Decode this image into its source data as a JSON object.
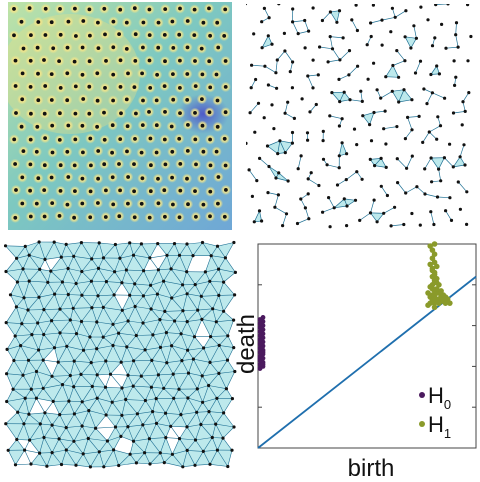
{
  "figure": {
    "panels": [
      {
        "name": "heatmap-panel",
        "kind": "density-field-with-points"
      },
      {
        "name": "sparse-complex-panel",
        "kind": "simplicial-complex",
        "filtration": "low"
      },
      {
        "name": "dense-complex-panel",
        "kind": "simplicial-complex",
        "filtration": "high"
      },
      {
        "name": "persistence-diagram-panel",
        "kind": "persistence-diagram"
      }
    ],
    "colors": {
      "points": "#111111",
      "edges": "#1d6f93",
      "triangles": "#bde9ec",
      "heat_high": "#f3e58a",
      "heat_mid": "#7ec9c0",
      "heat_low": "#4a4fc8"
    }
  },
  "chart_data": {
    "type": "scatter",
    "title": "",
    "xlabel": "birth",
    "ylabel": "death",
    "xlim": [
      0,
      1
    ],
    "ylim": [
      0,
      1
    ],
    "grid": false,
    "legend_position": "bottom-right",
    "diagonal": {
      "from": [
        0,
        0
      ],
      "to": [
        1,
        0.84
      ],
      "color": "#1f6fae"
    },
    "series": [
      {
        "name": "H",
        "subscript": "0",
        "color": "#4b1a5e",
        "x": [
          0,
          0,
          0,
          0,
          0,
          0,
          0,
          0,
          0,
          0,
          0,
          0,
          0,
          0,
          0,
          0,
          0,
          0,
          0,
          0,
          0,
          0,
          0,
          0,
          0,
          0,
          0,
          0,
          0,
          0
        ],
        "y": [
          0.39,
          0.4,
          0.41,
          0.42,
          0.43,
          0.44,
          0.45,
          0.46,
          0.47,
          0.48,
          0.49,
          0.5,
          0.51,
          0.52,
          0.53,
          0.54,
          0.55,
          0.56,
          0.57,
          0.58,
          0.59,
          0.6,
          0.61,
          0.62,
          0.63,
          0.64,
          0.39,
          0.41,
          0.44,
          0.47
        ]
      },
      {
        "name": "H",
        "subscript": "1",
        "color": "#8a9a2a",
        "x": [
          0.78,
          0.79,
          0.8,
          0.81,
          0.8,
          0.82,
          0.83,
          0.84,
          0.79,
          0.81,
          0.83,
          0.85,
          0.86,
          0.8,
          0.82,
          0.84,
          0.85,
          0.87,
          0.88,
          0.78,
          0.81,
          0.83,
          0.85,
          0.87,
          0.82,
          0.84,
          0.86,
          0.79,
          0.8,
          0.81,
          0.83,
          0.8,
          0.81,
          0.82,
          0.8,
          0.79,
          0.81,
          0.8,
          0.82,
          0.81,
          0.8,
          0.79,
          0.81,
          0.8,
          0.81,
          0.82,
          0.8,
          0.81
        ],
        "y": [
          0.7,
          0.71,
          0.72,
          0.71,
          0.73,
          0.72,
          0.71,
          0.72,
          0.74,
          0.74,
          0.73,
          0.72,
          0.71,
          0.75,
          0.76,
          0.74,
          0.73,
          0.72,
          0.71,
          0.76,
          0.77,
          0.76,
          0.75,
          0.73,
          0.78,
          0.77,
          0.74,
          0.79,
          0.8,
          0.82,
          0.8,
          0.84,
          0.86,
          0.83,
          0.88,
          0.9,
          0.91,
          0.93,
          0.89,
          0.95,
          0.97,
          0.99,
          1.0,
          0.87,
          0.85,
          0.81,
          0.78,
          0.69
        ]
      }
    ]
  }
}
